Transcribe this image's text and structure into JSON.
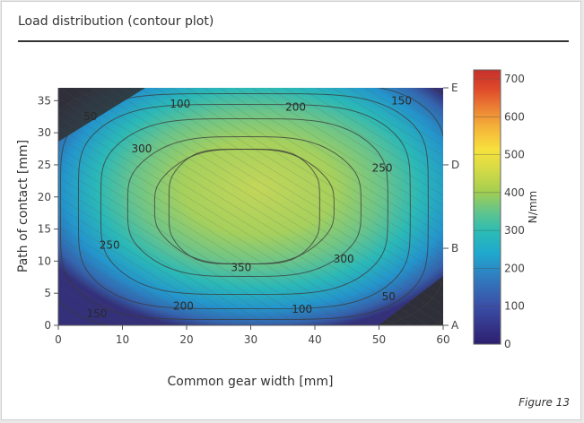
{
  "panel": {
    "title": "Load distribution (contour plot)",
    "caption": "Figure 13"
  },
  "chart_data": {
    "type": "contour",
    "xlabel": "Common gear width [mm]",
    "ylabel": "Path of contact [mm]",
    "xlim": [
      0,
      60
    ],
    "ylim": [
      0,
      37
    ],
    "xticks": [
      0,
      10,
      20,
      30,
      40,
      50,
      60
    ],
    "yticks": [
      0,
      5,
      10,
      15,
      20,
      25,
      30,
      35
    ],
    "contour_levels": [
      50,
      100,
      150,
      200,
      250,
      300,
      350
    ],
    "contour_labels": [
      {
        "text": "50",
        "x": 5,
        "y": 32.5
      },
      {
        "text": "100",
        "x": 19,
        "y": 34.5
      },
      {
        "text": "200",
        "x": 37,
        "y": 34
      },
      {
        "text": "150",
        "x": 53.5,
        "y": 35
      },
      {
        "text": "300",
        "x": 13,
        "y": 27.5
      },
      {
        "text": "250",
        "x": 50.5,
        "y": 24.5
      },
      {
        "text": "250",
        "x": 8,
        "y": 12.5
      },
      {
        "text": "350",
        "x": 28.5,
        "y": 9
      },
      {
        "text": "300",
        "x": 44.5,
        "y": 10.3
      },
      {
        "text": "200",
        "x": 19.5,
        "y": 3
      },
      {
        "text": "100",
        "x": 38,
        "y": 2.5
      },
      {
        "text": "50",
        "x": 51.5,
        "y": 4.5
      },
      {
        "text": "150",
        "x": 6,
        "y": 1.8
      }
    ],
    "secondary_axis": {
      "labels": [
        "A",
        "B",
        "D",
        "E"
      ],
      "values": [
        0,
        12,
        25,
        37
      ]
    },
    "colorbar": {
      "label": "N/mm",
      "range": [
        0,
        700
      ],
      "ticks": [
        0,
        100,
        200,
        300,
        400,
        500,
        600,
        700
      ],
      "colors": [
        "#2d1e6e",
        "#3b4fa8",
        "#2f7fc0",
        "#1fa8cf",
        "#2bbcb5",
        "#5fc48d",
        "#a7cf4f",
        "#d7db45",
        "#f7e13d",
        "#f5b33a",
        "#ec8134",
        "#df4a2a",
        "#c6302b"
      ]
    }
  }
}
